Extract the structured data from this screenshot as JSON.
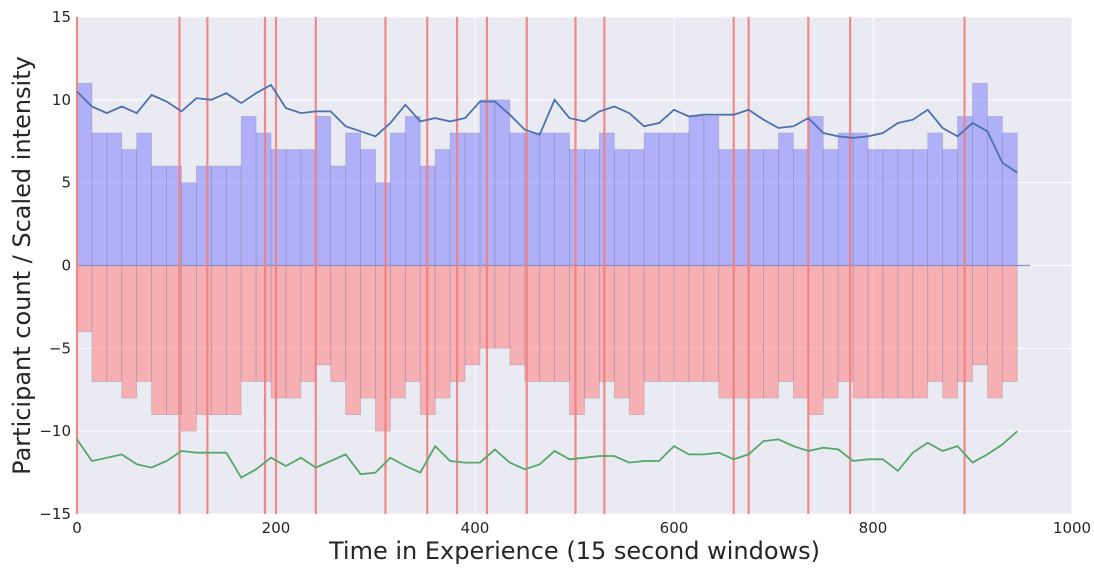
{
  "chart_data": {
    "type": "bar",
    "xlabel": "Time in Experience (15 second windows)",
    "ylabel": "Participant count / Scaled intensity",
    "xlim": [
      0,
      1000
    ],
    "ylim": [
      -15,
      15
    ],
    "xticks": [
      0,
      200,
      400,
      600,
      800,
      1000
    ],
    "yticks": [
      -15,
      -10,
      -5,
      0,
      5,
      10,
      15
    ],
    "grid": true,
    "background": "#eaeaf2",
    "bin_width": 15,
    "bin_starts": [
      0,
      15,
      30,
      45,
      60,
      75,
      90,
      105,
      120,
      135,
      150,
      165,
      180,
      195,
      210,
      225,
      240,
      255,
      270,
      285,
      300,
      315,
      330,
      345,
      360,
      375,
      390,
      405,
      420,
      435,
      450,
      465,
      480,
      495,
      510,
      525,
      540,
      555,
      570,
      585,
      600,
      615,
      630,
      645,
      660,
      675,
      690,
      705,
      720,
      735,
      750,
      765,
      780,
      795,
      810,
      825,
      840,
      855,
      870,
      885,
      900,
      915,
      930
    ],
    "series": [
      {
        "kind": "bar",
        "color": "#8080ff",
        "values": [
          11,
          8,
          8,
          7,
          8,
          6,
          6,
          5,
          6,
          6,
          6,
          9,
          8,
          7,
          7,
          7,
          9,
          6,
          8,
          7,
          5,
          8,
          9,
          6,
          7,
          8,
          8,
          10,
          10,
          8,
          8,
          8,
          8,
          7,
          7,
          8,
          7,
          7,
          8,
          8,
          8,
          9,
          9,
          7,
          7,
          7,
          7,
          8,
          7,
          9,
          7,
          8,
          8,
          7,
          7,
          7,
          7,
          8,
          7,
          9,
          11,
          9,
          8
        ]
      },
      {
        "kind": "bar",
        "color": "#ff8080",
        "values": [
          -4,
          -7,
          -7,
          -8,
          -7,
          -9,
          -9,
          -10,
          -9,
          -9,
          -9,
          -7,
          -7,
          -8,
          -8,
          -7,
          -6,
          -7,
          -9,
          -8,
          -10,
          -8,
          -7,
          -9,
          -8,
          -7,
          -6,
          -5,
          -5,
          -6,
          -7,
          -7,
          -7,
          -9,
          -8,
          -7,
          -8,
          -9,
          -7,
          -7,
          -7,
          -7,
          -7,
          -8,
          -8,
          -8,
          -8,
          -7,
          -8,
          -9,
          -8,
          -7,
          -8,
          -8,
          -8,
          -8,
          -8,
          -7,
          -8,
          -7,
          -6,
          -8,
          -7
        ]
      },
      {
        "kind": "line",
        "color": "#4c72b0",
        "x": [
          0,
          15,
          30,
          45,
          60,
          75,
          90,
          105,
          120,
          135,
          150,
          165,
          180,
          195,
          210,
          225,
          240,
          255,
          270,
          285,
          300,
          315,
          330,
          345,
          360,
          375,
          390,
          405,
          420,
          435,
          450,
          465,
          480,
          495,
          510,
          525,
          540,
          555,
          570,
          585,
          600,
          615,
          630,
          645,
          660,
          675,
          690,
          705,
          720,
          735,
          750,
          765,
          780,
          795,
          810,
          825,
          840,
          855,
          870,
          885,
          900,
          915,
          930,
          945
        ],
        "values": [
          10.5,
          9.6,
          9.2,
          9.6,
          9.2,
          10.3,
          9.9,
          9.3,
          10.1,
          10.0,
          10.4,
          9.8,
          10.4,
          10.9,
          9.5,
          9.2,
          9.3,
          9.3,
          8.4,
          8.1,
          7.8,
          8.6,
          9.7,
          8.7,
          8.9,
          8.7,
          8.9,
          9.9,
          9.9,
          9.1,
          8.2,
          7.9,
          10.0,
          8.9,
          8.7,
          9.3,
          9.6,
          9.2,
          8.4,
          8.6,
          9.4,
          9.0,
          9.1,
          9.1,
          9.1,
          9.4,
          8.8,
          8.3,
          8.4,
          8.9,
          8.0,
          7.8,
          7.7,
          7.8,
          8.0,
          8.6,
          8.8,
          9.4,
          8.3,
          7.8,
          8.6,
          8.1,
          6.2,
          5.6
        ]
      },
      {
        "kind": "line",
        "color": "#55a868",
        "x": [
          0,
          15,
          30,
          45,
          60,
          75,
          90,
          105,
          120,
          135,
          150,
          165,
          180,
          195,
          210,
          225,
          240,
          255,
          270,
          285,
          300,
          315,
          330,
          345,
          360,
          375,
          390,
          405,
          420,
          435,
          450,
          465,
          480,
          495,
          510,
          525,
          540,
          555,
          570,
          585,
          600,
          615,
          630,
          645,
          660,
          675,
          690,
          705,
          720,
          735,
          750,
          765,
          780,
          795,
          810,
          825,
          840,
          855,
          870,
          885,
          900,
          915,
          930,
          945
        ],
        "values": [
          -10.5,
          -11.8,
          -11.6,
          -11.4,
          -12.0,
          -12.2,
          -11.8,
          -11.2,
          -11.3,
          -11.3,
          -11.3,
          -12.8,
          -12.3,
          -11.6,
          -12.1,
          -11.6,
          -12.2,
          -11.8,
          -11.4,
          -12.6,
          -12.5,
          -11.6,
          -12.1,
          -12.5,
          -10.9,
          -11.8,
          -11.9,
          -11.9,
          -11.1,
          -11.9,
          -12.3,
          -12.0,
          -11.2,
          -11.7,
          -11.6,
          -11.5,
          -11.5,
          -11.9,
          -11.8,
          -11.8,
          -10.9,
          -11.4,
          -11.4,
          -11.3,
          -11.7,
          -11.4,
          -10.6,
          -10.5,
          -10.9,
          -11.2,
          -11.0,
          -11.1,
          -11.8,
          -11.7,
          -11.7,
          -12.4,
          -11.3,
          -10.7,
          -11.2,
          -10.9,
          -11.9,
          -11.4,
          -10.8,
          -10.0
        ]
      }
    ],
    "event_lines": {
      "color": "#f08080",
      "x": [
        0,
        103,
        131,
        189,
        200,
        240,
        310,
        352,
        382,
        412,
        452,
        501,
        530,
        660,
        675,
        735,
        777,
        892
      ]
    }
  }
}
